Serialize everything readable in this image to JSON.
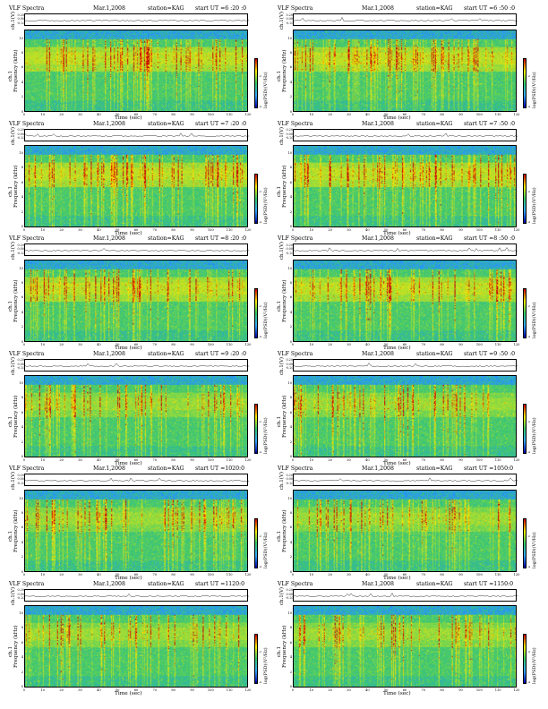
{
  "chart_data": [
    {
      "type": "heatmap",
      "app": "VLF Spectra",
      "date": "Mar.1,2008",
      "station": "station=KAG",
      "start_ut": "start  UT =6 :20 :0",
      "ts_ylabel": "ch.1(V)",
      "ylabel": "Frequency  (kHz)",
      "ch_label": "ch.1",
      "xlabel": "Time  (sec)",
      "colorbar_label": "log(PSD)(V²/Hz)",
      "x_ticks": [
        "0",
        "10",
        "20",
        "30",
        "40",
        "50",
        "60",
        "70",
        "80",
        "90",
        "100",
        "110",
        "120"
      ],
      "y_ticks": [
        "0",
        "2",
        "4",
        "6",
        "8",
        "10"
      ],
      "ts_ticks": [
        "0.20",
        "0.00",
        "-0.20"
      ],
      "colorbar_ticks": [
        "-2",
        "-4"
      ],
      "xlim": [
        0,
        120
      ],
      "ylim": [
        0,
        10
      ]
    },
    {
      "type": "heatmap",
      "app": "VLF Spectra",
      "date": "Mar.1,2008",
      "station": "station=KAG",
      "start_ut": "start  UT =6 :50 :0",
      "ts_ylabel": "ch.1(V)",
      "ylabel": "Frequency  (kHz)",
      "ch_label": "ch.1",
      "xlabel": "Time  (sec)",
      "colorbar_label": "log(PSD)(V²/Hz)",
      "x_ticks": [
        "0",
        "10",
        "20",
        "30",
        "40",
        "50",
        "60",
        "70",
        "80",
        "90",
        "100",
        "110",
        "120"
      ],
      "y_ticks": [
        "0",
        "2",
        "4",
        "6",
        "8",
        "10"
      ],
      "ts_ticks": [
        "0.20",
        "0.00",
        "-0.20"
      ],
      "colorbar_ticks": [
        "-2",
        "-4"
      ],
      "xlim": [
        0,
        120
      ],
      "ylim": [
        0,
        10
      ]
    },
    {
      "type": "heatmap",
      "app": "VLF Spectra",
      "date": "Mar.1,2008",
      "station": "station=KAG",
      "start_ut": "start  UT =7 :20 :0",
      "ts_ylabel": "ch.1(V)",
      "ylabel": "Frequency  (kHz)",
      "ch_label": "ch.1",
      "xlabel": "Time  (sec)",
      "colorbar_label": "log(PSD)(V²/Hz)",
      "x_ticks": [
        "0",
        "10",
        "20",
        "30",
        "40",
        "50",
        "60",
        "70",
        "80",
        "90",
        "100",
        "110",
        "120"
      ],
      "y_ticks": [
        "0",
        "2",
        "4",
        "6",
        "8",
        "10"
      ],
      "ts_ticks": [
        "0.20",
        "0.00",
        "-0.20"
      ],
      "colorbar_ticks": [
        "-2",
        "-4"
      ],
      "xlim": [
        0,
        120
      ],
      "ylim": [
        0,
        10
      ]
    },
    {
      "type": "heatmap",
      "app": "VLF Spectra",
      "date": "Mar.1,2008",
      "station": "station=KAG",
      "start_ut": "start  UT =7 :50 :0",
      "ts_ylabel": "ch.1(V)",
      "ylabel": "Frequency  (kHz)",
      "ch_label": "ch.1",
      "xlabel": "Time  (sec)",
      "colorbar_label": "log(PSD)(V²/Hz)",
      "x_ticks": [
        "0",
        "10",
        "20",
        "30",
        "40",
        "50",
        "60",
        "70",
        "80",
        "90",
        "100",
        "110",
        "120"
      ],
      "y_ticks": [
        "0",
        "2",
        "4",
        "6",
        "8",
        "10"
      ],
      "ts_ticks": [
        "0.20",
        "0.00",
        "-0.20"
      ],
      "colorbar_ticks": [
        "-2",
        "-4"
      ],
      "xlim": [
        0,
        120
      ],
      "ylim": [
        0,
        10
      ]
    },
    {
      "type": "heatmap",
      "app": "VLF Spectra",
      "date": "Mar.1,2008",
      "station": "station=KAG",
      "start_ut": "start  UT =8 :20 :0",
      "ts_ylabel": "ch.1(V)",
      "ylabel": "Frequency  (kHz)",
      "ch_label": "ch.1",
      "xlabel": "Time  (sec)",
      "colorbar_label": "log(PSD)(V²/Hz)",
      "x_ticks": [
        "0",
        "10",
        "20",
        "30",
        "40",
        "50",
        "60",
        "70",
        "80",
        "90",
        "100",
        "110",
        "120"
      ],
      "y_ticks": [
        "0",
        "2",
        "4",
        "6",
        "8",
        "10"
      ],
      "ts_ticks": [
        "0.20",
        "0.00",
        "-0.20"
      ],
      "colorbar_ticks": [
        "-2",
        "-4"
      ],
      "xlim": [
        0,
        120
      ],
      "ylim": [
        0,
        10
      ]
    },
    {
      "type": "heatmap",
      "app": "VLF Spectra",
      "date": "Mar.1,2008",
      "station": "station=KAG",
      "start_ut": "start  UT =8 :50 :0",
      "ts_ylabel": "ch.1(V)",
      "ylabel": "Frequency  (kHz)",
      "ch_label": "ch.1",
      "xlabel": "Time  (sec)",
      "colorbar_label": "log(PSD)(V²/Hz)",
      "x_ticks": [
        "0",
        "10",
        "20",
        "30",
        "40",
        "50",
        "60",
        "70",
        "80",
        "90",
        "100",
        "110",
        "120"
      ],
      "y_ticks": [
        "0",
        "2",
        "4",
        "6",
        "8",
        "10"
      ],
      "ts_ticks": [
        "0.20",
        "0.00",
        "-0.20"
      ],
      "colorbar_ticks": [
        "-2",
        "-4"
      ],
      "xlim": [
        0,
        120
      ],
      "ylim": [
        0,
        10
      ]
    },
    {
      "type": "heatmap",
      "app": "VLF Spectra",
      "date": "Mar.1,2008",
      "station": "station=KAG",
      "start_ut": "start  UT =9 :20 :0",
      "ts_ylabel": "ch.1(V)",
      "ylabel": "Frequency  (kHz)",
      "ch_label": "ch.1",
      "xlabel": "Time  (sec)",
      "colorbar_label": "log(PSD)(V²/Hz)",
      "x_ticks": [
        "0",
        "10",
        "20",
        "30",
        "40",
        "50",
        "60",
        "70",
        "80",
        "90",
        "100",
        "110",
        "120"
      ],
      "y_ticks": [
        "0",
        "2",
        "4",
        "6",
        "8",
        "10"
      ],
      "ts_ticks": [
        "0.20",
        "0.00",
        "-0.20"
      ],
      "colorbar_ticks": [
        "-2",
        "-4"
      ],
      "xlim": [
        0,
        120
      ],
      "ylim": [
        0,
        10
      ]
    },
    {
      "type": "heatmap",
      "app": "VLF Spectra",
      "date": "Mar.1,2008",
      "station": "station=KAG",
      "start_ut": "start  UT =9 :50 :0",
      "ts_ylabel": "ch.1(V)",
      "ylabel": "Frequency  (kHz)",
      "ch_label": "ch.1",
      "xlabel": "Time  (sec)",
      "colorbar_label": "log(PSD)(V²/Hz)",
      "x_ticks": [
        "0",
        "10",
        "20",
        "30",
        "40",
        "50",
        "60",
        "70",
        "80",
        "90",
        "100",
        "110",
        "120"
      ],
      "y_ticks": [
        "0",
        "2",
        "4",
        "6",
        "8",
        "10"
      ],
      "ts_ticks": [
        "0.20",
        "0.00",
        "-0.20"
      ],
      "colorbar_ticks": [
        "-2",
        "-4"
      ],
      "xlim": [
        0,
        120
      ],
      "ylim": [
        0,
        10
      ]
    },
    {
      "type": "heatmap",
      "app": "VLF Spectra",
      "date": "Mar.1,2008",
      "station": "station=KAG",
      "start_ut": "start  UT =1020:0",
      "ts_ylabel": "ch.1(V)",
      "ylabel": "Frequency  (kHz)",
      "ch_label": "ch.1",
      "xlabel": "Time  (sec)",
      "colorbar_label": "log(PSD)(V²/Hz)",
      "x_ticks": [
        "0",
        "10",
        "20",
        "30",
        "40",
        "50",
        "60",
        "70",
        "80",
        "90",
        "100",
        "110",
        "120"
      ],
      "y_ticks": [
        "0",
        "2",
        "4",
        "6",
        "8",
        "10"
      ],
      "ts_ticks": [
        "0.20",
        "0.00",
        "-0.20"
      ],
      "colorbar_ticks": [
        "-2",
        "-4"
      ],
      "xlim": [
        0,
        120
      ],
      "ylim": [
        0,
        10
      ]
    },
    {
      "type": "heatmap",
      "app": "VLF Spectra",
      "date": "Mar.1,2008",
      "station": "station=KAG",
      "start_ut": "start  UT =1050:0",
      "ts_ylabel": "ch.1(V)",
      "ylabel": "Frequency  (kHz)",
      "ch_label": "ch.1",
      "xlabel": "Time  (sec)",
      "colorbar_label": "log(PSD)(V²/Hz)",
      "x_ticks": [
        "0",
        "10",
        "20",
        "30",
        "40",
        "50",
        "60",
        "70",
        "80",
        "90",
        "100",
        "110",
        "120"
      ],
      "y_ticks": [
        "0",
        "2",
        "4",
        "6",
        "8",
        "10"
      ],
      "ts_ticks": [
        "0.20",
        "0.00",
        "-0.20"
      ],
      "colorbar_ticks": [
        "-2",
        "-4"
      ],
      "xlim": [
        0,
        120
      ],
      "ylim": [
        0,
        10
      ]
    },
    {
      "type": "heatmap",
      "app": "VLF Spectra",
      "date": "Mar.1,2008",
      "station": "station=KAG",
      "start_ut": "start  UT =1120:0",
      "ts_ylabel": "ch.1(V)",
      "ylabel": "Frequency  (kHz)",
      "ch_label": "ch.1",
      "xlabel": "Time  (sec)",
      "colorbar_label": "log(PSD)(V²/Hz)",
      "x_ticks": [
        "0",
        "10",
        "20",
        "30",
        "40",
        "50",
        "60",
        "70",
        "80",
        "90",
        "100",
        "110",
        "120"
      ],
      "y_ticks": [
        "0",
        "2",
        "4",
        "6",
        "8",
        "10"
      ],
      "ts_ticks": [
        "0.20",
        "0.00",
        "-0.20"
      ],
      "colorbar_ticks": [
        "-2",
        "-4"
      ],
      "xlim": [
        0,
        120
      ],
      "ylim": [
        0,
        10
      ]
    },
    {
      "type": "heatmap",
      "app": "VLF Spectra",
      "date": "Mar.1,2008",
      "station": "station=KAG",
      "start_ut": "start  UT =1150:0",
      "ts_ylabel": "ch.1(V)",
      "ylabel": "Frequency  (kHz)",
      "ch_label": "ch.1",
      "xlabel": "Time  (sec)",
      "colorbar_label": "log(PSD)(V²/Hz)",
      "x_ticks": [
        "0",
        "10",
        "20",
        "30",
        "40",
        "50",
        "60",
        "70",
        "80",
        "90",
        "100",
        "110",
        "120"
      ],
      "y_ticks": [
        "0",
        "2",
        "4",
        "6",
        "8",
        "10"
      ],
      "ts_ticks": [
        "0.20",
        "0.00",
        "-0.20"
      ],
      "colorbar_ticks": [
        "-2",
        "-4"
      ],
      "xlim": [
        0,
        120
      ],
      "ylim": [
        0,
        10
      ]
    }
  ],
  "colors": {
    "low": "#0000aa",
    "mid": "#33cc66",
    "high": "#ffee00",
    "peak": "#cc0000"
  }
}
